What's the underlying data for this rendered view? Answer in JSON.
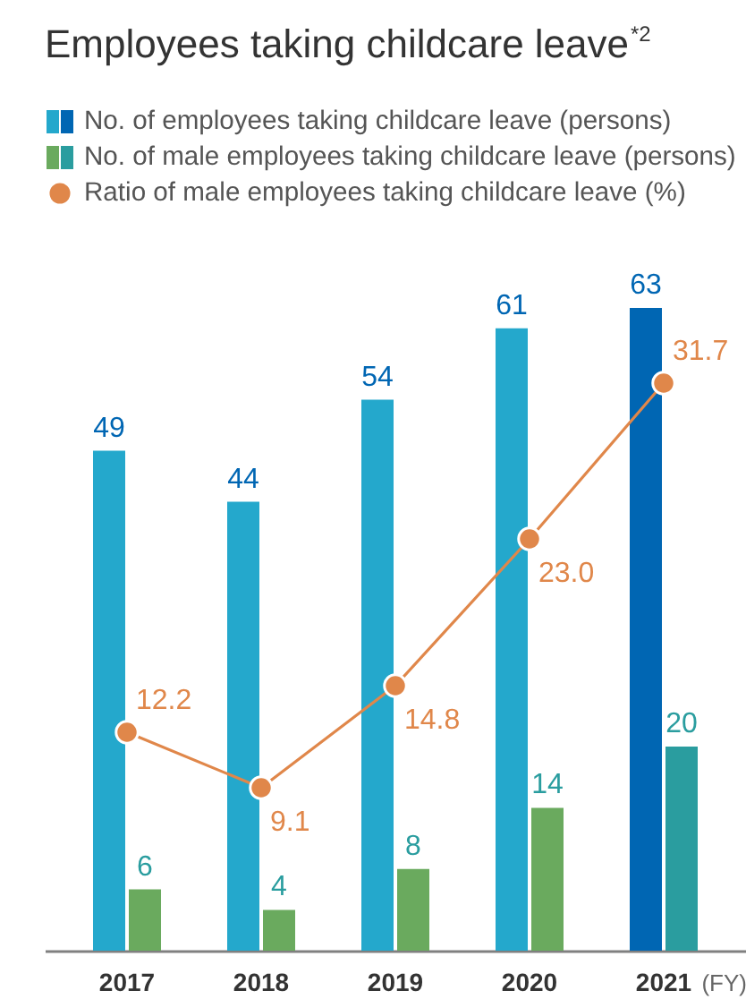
{
  "chart_data": {
    "type": "bar",
    "title": "Employees taking childcare leave$^{*2}$",
    "xlabel": "(FY)",
    "categories": [
      "2017",
      "2018",
      "2019",
      "2020",
      "2021"
    ],
    "series": [
      {
        "name": "No. of employees taking childcare leave (persons)",
        "colors": [
          "#24a8cc",
          "#24a8cc",
          "#24a8cc",
          "#24a8cc",
          "#0066b3"
        ],
        "values": [
          49,
          44,
          54,
          61,
          63
        ]
      },
      {
        "name": "No. of male employees taking childcare leave (persons)",
        "colors": [
          "#6aaa5e",
          "#6aaa5e",
          "#6aaa5e",
          "#6aaa5e",
          "#2a9d9f"
        ],
        "values": [
          6,
          4,
          8,
          14,
          20
        ]
      },
      {
        "name": "Ratio of male employees taking childcare leave (%)",
        "type": "line",
        "axis": "y2",
        "color": "#e0874a",
        "marker": "circle",
        "line_style": "solid",
        "values": [
          12.2,
          9.1,
          14.8,
          23.0,
          31.7
        ],
        "value_labels": [
          "12.2",
          "9.1",
          "14.8",
          "23.0",
          "31.7"
        ]
      }
    ],
    "data_labels": true,
    "legend": "top left",
    "tick_labels": "x"
  }
}
